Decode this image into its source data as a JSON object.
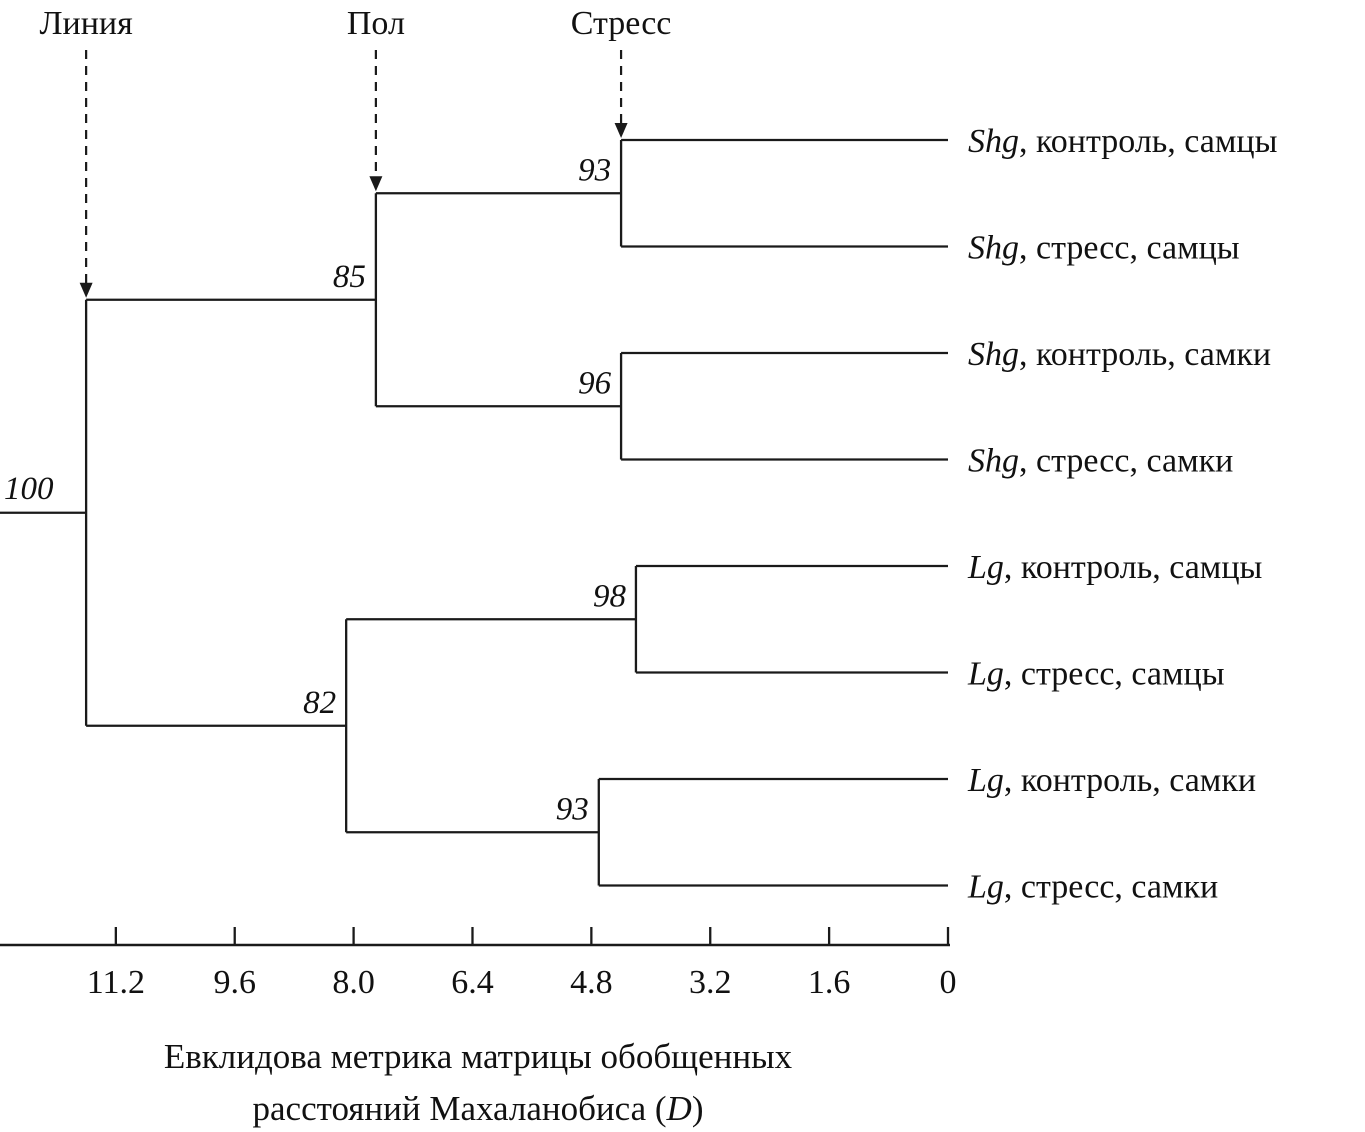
{
  "chart_data": {
    "type": "dendrogram",
    "orientation": "horizontal-right-aligned",
    "line_color": "#1a1a1a",
    "background": "#ffffff",
    "axis": {
      "ticks": [
        "11.2",
        "9.6",
        "8.0",
        "6.4",
        "4.8",
        "3.2",
        "1.6",
        "0"
      ],
      "tick_values": [
        11.2,
        9.6,
        8.0,
        6.4,
        4.8,
        3.2,
        1.6,
        0
      ],
      "range": [
        12.8,
        0
      ],
      "title_line1": "Евклидова метрика матрицы обобщенных",
      "title_line2_prefix": "расстояний Махаланобиса (",
      "title_line2_italic": "D",
      "title_line2_suffix": ")"
    },
    "factor_labels": [
      {
        "label": "Линия",
        "target": ""
      },
      {
        "label": "Пол",
        "target": "0"
      },
      {
        "label": "Стресс",
        "target": "0.0"
      }
    ],
    "leaves": [
      {
        "taxon": "Shg",
        "suffix": ", контроль, самцы"
      },
      {
        "taxon": "Shg",
        "suffix": ", стресс, самцы"
      },
      {
        "taxon": "Shg",
        "suffix": ", контроль, самки"
      },
      {
        "taxon": "Shg",
        "suffix": ", стресс, самки"
      },
      {
        "taxon": "Lg",
        "suffix": ", контроль, самцы"
      },
      {
        "taxon": "Lg",
        "suffix": ", стресс, самцы"
      },
      {
        "taxon": "Lg",
        "suffix": ", контроль, самки"
      },
      {
        "taxon": "Lg",
        "suffix": ", стресс, самки"
      }
    ],
    "tree": {
      "support": "100",
      "height": 11.6,
      "children": [
        {
          "support": "85",
          "height": 7.7,
          "children": [
            {
              "support": "93",
              "height": 4.4,
              "children": [
                {
                  "leaf": 0
                },
                {
                  "leaf": 1
                }
              ]
            },
            {
              "support": "96",
              "height": 4.4,
              "children": [
                {
                  "leaf": 2
                },
                {
                  "leaf": 3
                }
              ]
            }
          ]
        },
        {
          "support": "82",
          "height": 8.1,
          "children": [
            {
              "support": "98",
              "height": 4.2,
              "children": [
                {
                  "leaf": 4
                },
                {
                  "leaf": 5
                }
              ]
            },
            {
              "support": "93",
              "height": 4.7,
              "children": [
                {
                  "leaf": 6
                },
                {
                  "leaf": 7
                }
              ]
            }
          ]
        }
      ]
    }
  }
}
